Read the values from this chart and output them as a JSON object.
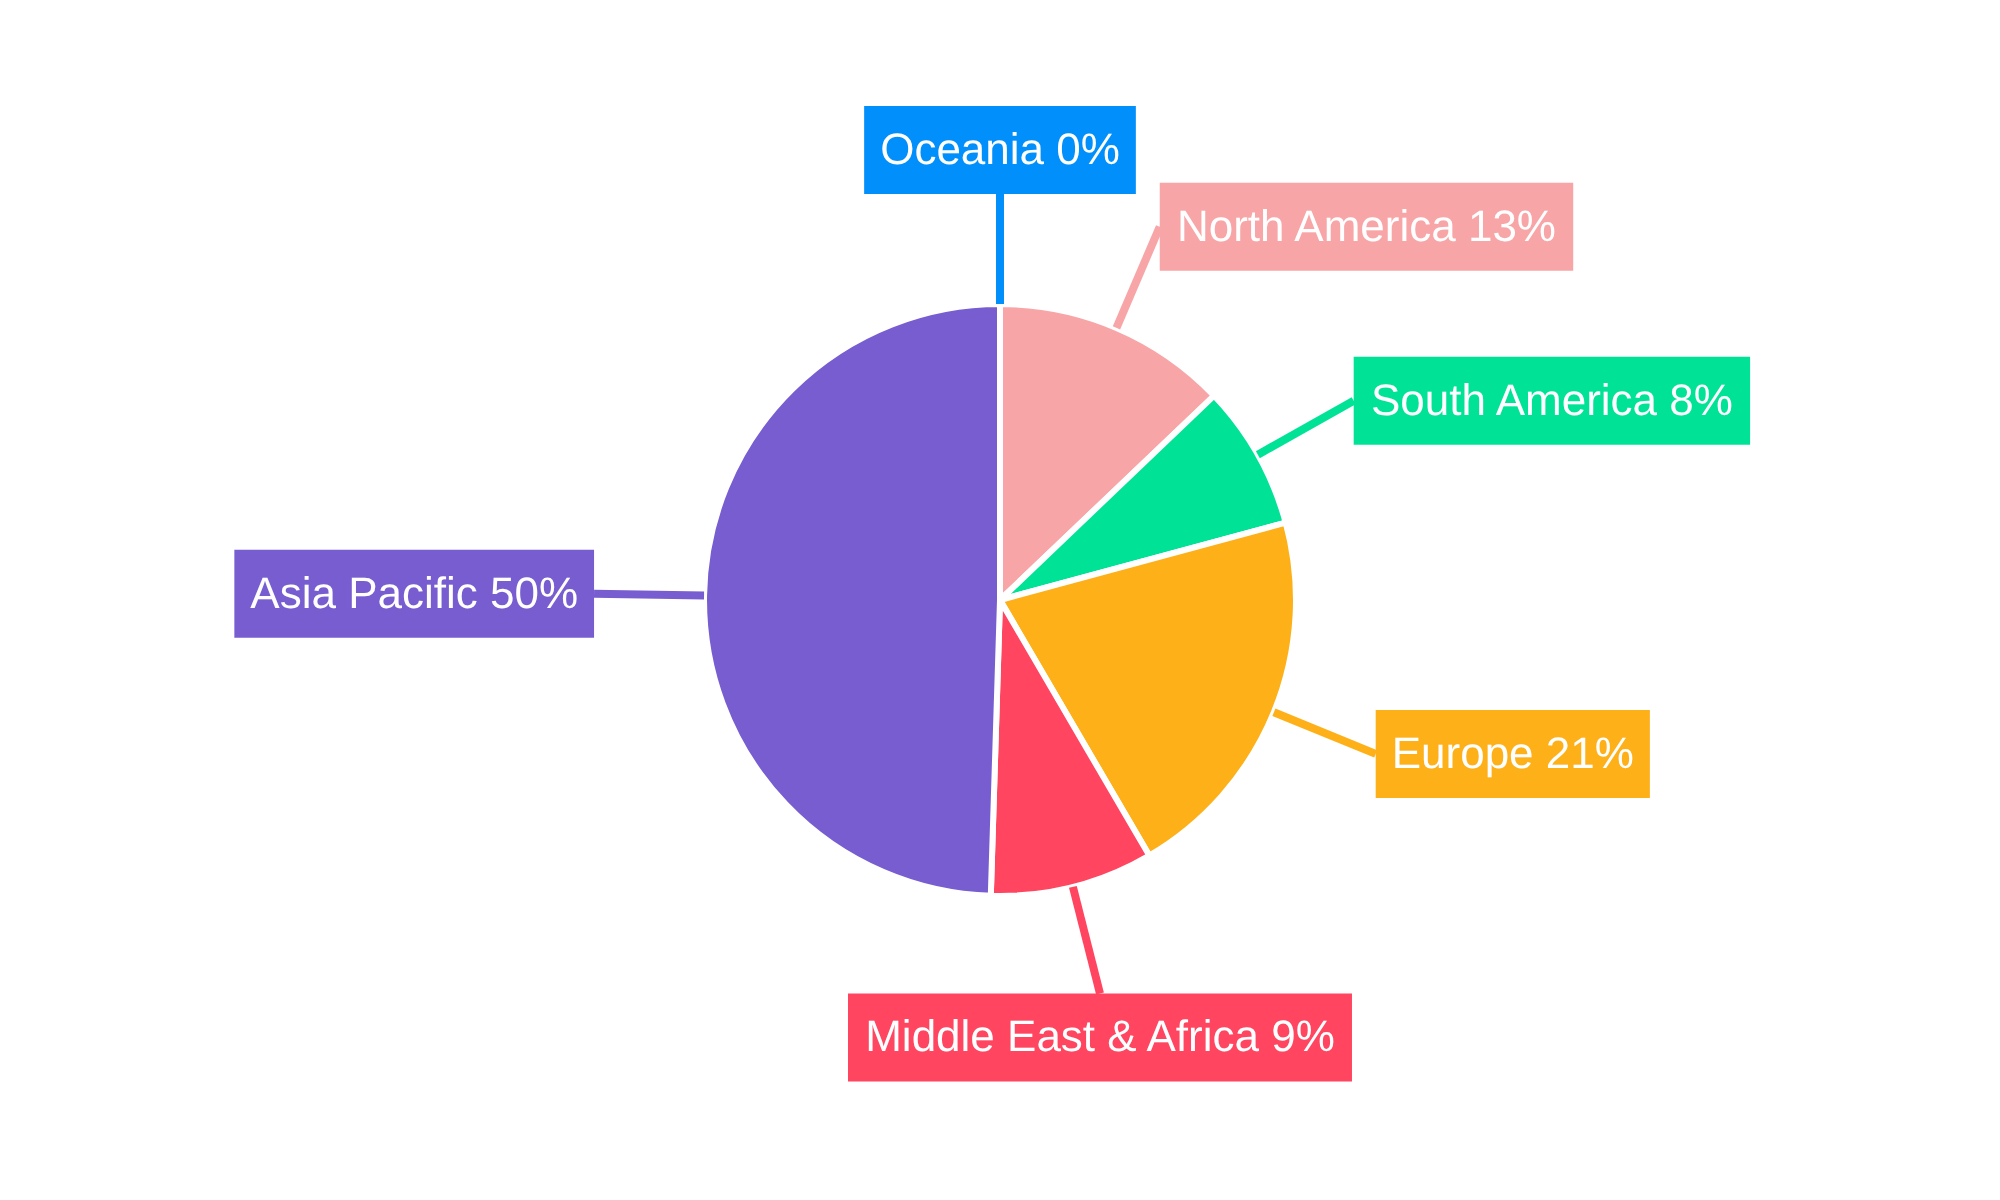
{
  "chart_data": {
    "type": "pie",
    "categories": [
      "Oceania",
      "North America",
      "South America",
      "Europe",
      "Middle East & Africa",
      "Asia Pacific"
    ],
    "values": [
      0,
      13,
      8,
      21,
      9,
      50
    ],
    "value_labels": [
      "0%",
      "13%",
      "8%",
      "21%",
      "9%",
      "50%"
    ],
    "colors": [
      "#008ffb",
      "#f8a5a7",
      "#00e396",
      "#feb019",
      "#ff4560",
      "#775dd0"
    ]
  }
}
